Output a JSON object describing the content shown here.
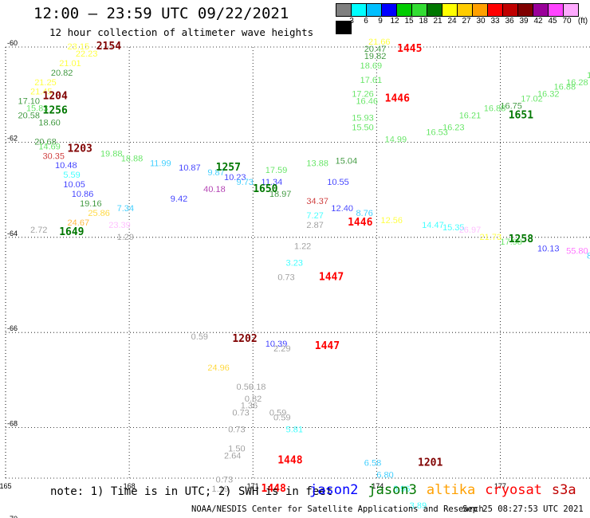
{
  "header": {
    "title": "12:00 – 23:59 UTC 09/22/2021",
    "subtitle": "12 hour collection of altimeter wave heights"
  },
  "legend": {
    "unit": "(ft)",
    "colors": [
      "#808080",
      "#00ffff",
      "#00bfff",
      "#0000ff",
      "#00cc00",
      "#33dd33",
      "#007700",
      "#ffff00",
      "#ffcc00",
      "#ffa000",
      "#ff0000",
      "#c00000",
      "#800000",
      "#990099",
      "#ff44ff",
      "#ffaaff",
      "#000000"
    ],
    "labels": [
      "3",
      "6",
      "9",
      "12",
      "15",
      "18",
      "21",
      "24",
      "27",
      "30",
      "33",
      "36",
      "39",
      "42",
      "45",
      "70"
    ]
  },
  "axes": {
    "lat_labels": [
      "-60",
      "-62",
      "-64",
      "-66",
      "-68",
      "-70"
    ],
    "lon_labels": [
      "165",
      "168",
      "171",
      "-174",
      "177"
    ]
  },
  "wave_heights": [
    {
      "text": "23.15",
      "lon": 166.5,
      "lat": -60.05,
      "color": "#ffff00"
    },
    {
      "text": "22.23",
      "lon": 166.7,
      "lat": -60.2,
      "color": "#ffff00"
    },
    {
      "text": "21.01",
      "lon": 166.3,
      "lat": -60.4,
      "color": "#ffff00"
    },
    {
      "text": "20.82",
      "lon": 166.1,
      "lat": -60.6,
      "color": "#007700"
    },
    {
      "text": "21.25",
      "lon": 165.7,
      "lat": -60.8,
      "color": "#ffff00"
    },
    {
      "text": "21.45",
      "lon": 165.6,
      "lat": -61.0,
      "color": "#ffff00"
    },
    {
      "text": "17.10",
      "lon": 165.3,
      "lat": -61.2,
      "color": "#007700"
    },
    {
      "text": "15.83",
      "lon": 165.5,
      "lat": -61.35,
      "color": "#33dd33"
    },
    {
      "text": "20.58",
      "lon": 165.3,
      "lat": -61.5,
      "color": "#007700"
    },
    {
      "text": "18.60",
      "lon": 165.8,
      "lat": -61.65,
      "color": "#007700"
    },
    {
      "text": "20.68",
      "lon": 165.7,
      "lat": -62.05,
      "color": "#007700"
    },
    {
      "text": "14.69",
      "lon": 165.8,
      "lat": -62.15,
      "color": "#33dd33"
    },
    {
      "text": "30.35",
      "lon": 165.9,
      "lat": -62.35,
      "color": "#c00000"
    },
    {
      "text": "10.48",
      "lon": 166.2,
      "lat": -62.55,
      "color": "#0000ff"
    },
    {
      "text": "5.59",
      "lon": 166.4,
      "lat": -62.75,
      "color": "#00ffff"
    },
    {
      "text": "10.05",
      "lon": 166.4,
      "lat": -62.95,
      "color": "#0000ff"
    },
    {
      "text": "10.86",
      "lon": 166.6,
      "lat": -63.15,
      "color": "#0000ff"
    },
    {
      "text": "19.16",
      "lon": 166.8,
      "lat": -63.35,
      "color": "#007700"
    },
    {
      "text": "7.34",
      "lon": 167.7,
      "lat": -63.45,
      "color": "#00bfff"
    },
    {
      "text": "25.86",
      "lon": 167.0,
      "lat": -63.55,
      "color": "#ffcc00"
    },
    {
      "text": "24.67",
      "lon": 166.5,
      "lat": -63.75,
      "color": "#ffa000"
    },
    {
      "text": "23.39",
      "lon": 167.5,
      "lat": -63.8,
      "color": "#ffaaff"
    },
    {
      "text": "2.72",
      "lon": 165.6,
      "lat": -63.9,
      "color": "#808080"
    },
    {
      "text": "1.29",
      "lon": 167.7,
      "lat": -64.05,
      "color": "#808080"
    },
    {
      "text": "19.88",
      "lon": 167.3,
      "lat": -62.3,
      "color": "#33dd33"
    },
    {
      "text": "18.88",
      "lon": 167.8,
      "lat": -62.4,
      "color": "#33dd33"
    },
    {
      "text": "11.99",
      "lon": 168.5,
      "lat": -62.5,
      "color": "#00bfff"
    },
    {
      "text": "10.87",
      "lon": 169.2,
      "lat": -62.6,
      "color": "#0000ff"
    },
    {
      "text": "9.87",
      "lon": 169.9,
      "lat": -62.7,
      "color": "#00bfff"
    },
    {
      "text": "10.23",
      "lon": 170.3,
      "lat": -62.8,
      "color": "#0000ff"
    },
    {
      "text": "9.73",
      "lon": 170.6,
      "lat": -62.9,
      "color": "#00bfff"
    },
    {
      "text": "9.42",
      "lon": 169.0,
      "lat": -63.25,
      "color": "#0000ff"
    },
    {
      "text": "40.18",
      "lon": 169.8,
      "lat": -63.05,
      "color": "#990099"
    },
    {
      "text": "11.34",
      "lon": 171.2,
      "lat": -62.9,
      "color": "#0000ff"
    },
    {
      "text": "17.59",
      "lon": 171.3,
      "lat": -62.65,
      "color": "#33dd33"
    },
    {
      "text": "18.97",
      "lon": 171.4,
      "lat": -63.15,
      "color": "#007700"
    },
    {
      "text": "13.88",
      "lon": 172.3,
      "lat": -62.5,
      "color": "#33dd33"
    },
    {
      "text": "15.04",
      "lon": 173.0,
      "lat": -62.45,
      "color": "#007700"
    },
    {
      "text": "10.55",
      "lon": 172.8,
      "lat": -62.9,
      "color": "#0000ff"
    },
    {
      "text": "34.37",
      "lon": 172.3,
      "lat": -63.3,
      "color": "#c00000"
    },
    {
      "text": "7.27",
      "lon": 172.3,
      "lat": -63.6,
      "color": "#00ffff"
    },
    {
      "text": "2.87",
      "lon": 172.3,
      "lat": -63.8,
      "color": "#808080"
    },
    {
      "text": "12.40",
      "lon": 172.9,
      "lat": -63.45,
      "color": "#0000ff"
    },
    {
      "text": "8.76",
      "lon": 173.5,
      "lat": -63.55,
      "color": "#00bfff"
    },
    {
      "text": "12.56",
      "lon": 174.1,
      "lat": -63.7,
      "color": "#ffff00"
    },
    {
      "text": "1.22",
      "lon": 172.0,
      "lat": -64.25,
      "color": "#808080"
    },
    {
      "text": "3.23",
      "lon": 171.8,
      "lat": -64.6,
      "color": "#00ffff"
    },
    {
      "text": "0.73",
      "lon": 171.6,
      "lat": -64.9,
      "color": "#808080"
    },
    {
      "text": "21.66",
      "lon": 173.8,
      "lat": -59.95,
      "color": "#ffff00"
    },
    {
      "text": "20.47",
      "lon": 173.7,
      "lat": -60.1,
      "color": "#007700"
    },
    {
      "text": "19.82",
      "lon": 173.7,
      "lat": -60.25,
      "color": "#007700"
    },
    {
      "text": "18.69",
      "lon": 173.6,
      "lat": -60.45,
      "color": "#33dd33"
    },
    {
      "text": "17.61",
      "lon": 173.6,
      "lat": -60.75,
      "color": "#33dd33"
    },
    {
      "text": "17.26",
      "lon": 173.4,
      "lat": -61.05,
      "color": "#33dd33"
    },
    {
      "text": "16.46",
      "lon": 173.5,
      "lat": -61.2,
      "color": "#33dd33"
    },
    {
      "text": "15.93",
      "lon": 173.4,
      "lat": -61.55,
      "color": "#33dd33"
    },
    {
      "text": "15.50",
      "lon": 173.4,
      "lat": -61.75,
      "color": "#33dd33"
    },
    {
      "text": "14.99",
      "lon": 174.2,
      "lat": -62.0,
      "color": "#33dd33"
    },
    {
      "text": "16.53",
      "lon": 175.2,
      "lat": -61.85,
      "color": "#33dd33"
    },
    {
      "text": "16.23",
      "lon": 175.6,
      "lat": -61.75,
      "color": "#33dd33"
    },
    {
      "text": "16.21",
      "lon": 176.0,
      "lat": -61.5,
      "color": "#33dd33"
    },
    {
      "text": "16.88",
      "lon": 176.6,
      "lat": -61.35,
      "color": "#33dd33"
    },
    {
      "text": "16.75",
      "lon": 177.0,
      "lat": -61.3,
      "color": "#007700"
    },
    {
      "text": "17.02",
      "lon": 177.5,
      "lat": -61.15,
      "color": "#33dd33"
    },
    {
      "text": "16.32",
      "lon": 177.9,
      "lat": -61.05,
      "color": "#33dd33"
    },
    {
      "text": "16.88",
      "lon": 178.3,
      "lat": -60.9,
      "color": "#33dd33"
    },
    {
      "text": "16.28",
      "lon": 178.6,
      "lat": -60.8,
      "color": "#33dd33"
    },
    {
      "text": "16.21",
      "lon": 179.1,
      "lat": -60.65,
      "color": "#33dd33"
    },
    {
      "text": "14.34",
      "lon": 179.6,
      "lat": -60.5,
      "color": "#33dd33"
    },
    {
      "text": "14.72",
      "lon": 180.0,
      "lat": -60.4,
      "color": "#33dd33"
    },
    {
      "text": "15.72",
      "lon": 180.6,
      "lat": -60.35,
      "color": "#33dd33"
    },
    {
      "text": "15.72",
      "lon": 181.1,
      "lat": -60.2,
      "color": "#33dd33"
    },
    {
      "text": "14.47",
      "lon": 175.1,
      "lat": -63.8,
      "color": "#00ffff"
    },
    {
      "text": "15.35",
      "lon": 175.6,
      "lat": -63.85,
      "color": "#00ffff"
    },
    {
      "text": "26.97",
      "lon": 176.0,
      "lat": -63.9,
      "color": "#ffaaff"
    },
    {
      "text": "21.73",
      "lon": 176.5,
      "lat": -64.05,
      "color": "#ffff00"
    },
    {
      "text": "17.98",
      "lon": 177.0,
      "lat": -64.15,
      "color": "#33dd33"
    },
    {
      "text": "10.13",
      "lon": 177.9,
      "lat": -64.3,
      "color": "#0000ff"
    },
    {
      "text": "55.80",
      "lon": 178.6,
      "lat": -64.35,
      "color": "#ff44ff"
    },
    {
      "text": "8.76",
      "lon": 179.1,
      "lat": -64.45,
      "color": "#00bfff"
    },
    {
      "text": "8.04",
      "lon": 179.5,
      "lat": -64.5,
      "color": "#00bfff"
    },
    {
      "text": "11.26",
      "lon": 180.3,
      "lat": -64.55,
      "color": "#33dd33"
    },
    {
      "text": "11.31",
      "lon": 180.6,
      "lat": -64.6,
      "color": "#0000ff"
    },
    {
      "text": "0.59",
      "lon": 169.5,
      "lat": -66.15,
      "color": "#808080"
    },
    {
      "text": "10.39",
      "lon": 171.3,
      "lat": -66.3,
      "color": "#0000ff"
    },
    {
      "text": "2.29",
      "lon": 171.5,
      "lat": -66.4,
      "color": "#808080"
    },
    {
      "text": "24.96",
      "lon": 169.9,
      "lat": -66.8,
      "color": "#ffcc00"
    },
    {
      "text": "0.59",
      "lon": 170.6,
      "lat": -67.2,
      "color": "#808080"
    },
    {
      "text": "0.18",
      "lon": 170.9,
      "lat": -67.2,
      "color": "#808080"
    },
    {
      "text": "0.82",
      "lon": 170.8,
      "lat": -67.45,
      "color": "#808080"
    },
    {
      "text": "1.36",
      "lon": 170.7,
      "lat": -67.6,
      "color": "#808080"
    },
    {
      "text": "0.73",
      "lon": 170.5,
      "lat": -67.75,
      "color": "#808080"
    },
    {
      "text": "0.59",
      "lon": 171.4,
      "lat": -67.75,
      "color": "#808080"
    },
    {
      "text": "0.59",
      "lon": 171.5,
      "lat": -67.85,
      "color": "#808080"
    },
    {
      "text": "0.73",
      "lon": 170.4,
      "lat": -68.1,
      "color": "#808080"
    },
    {
      "text": "5.81",
      "lon": 171.8,
      "lat": -68.1,
      "color": "#00ffff"
    },
    {
      "text": "1.50",
      "lon": 170.4,
      "lat": -68.5,
      "color": "#808080"
    },
    {
      "text": "2.64",
      "lon": 170.3,
      "lat": -68.65,
      "color": "#808080"
    },
    {
      "text": "0.73",
      "lon": 170.1,
      "lat": -69.15,
      "color": "#808080"
    },
    {
      "text": "1.19",
      "lon": 170.0,
      "lat": -69.35,
      "color": "#808080"
    },
    {
      "text": "6.58",
      "lon": 173.7,
      "lat": -68.8,
      "color": "#00bfff"
    },
    {
      "text": "6.80",
      "lon": 174.0,
      "lat": -69.05,
      "color": "#00bfff"
    },
    {
      "text": "3.96",
      "lon": 174.4,
      "lat": -69.35,
      "color": "#00ffff"
    },
    {
      "text": "3.89",
      "lon": 174.8,
      "lat": -69.7,
      "color": "#00ffff"
    }
  ],
  "pass_times": [
    {
      "text": "2154",
      "lon": 167.2,
      "lat": -60.05,
      "color": "#800000"
    },
    {
      "text": "1204",
      "lon": 165.9,
      "lat": -61.1,
      "color": "#800000"
    },
    {
      "text": "1256",
      "lon": 165.9,
      "lat": -61.4,
      "color": "#007700"
    },
    {
      "text": "1203",
      "lon": 166.5,
      "lat": -62.2,
      "color": "#800000"
    },
    {
      "text": "1649",
      "lon": 166.3,
      "lat": -63.95,
      "color": "#007700"
    },
    {
      "text": "1257",
      "lon": 170.1,
      "lat": -62.6,
      "color": "#007700"
    },
    {
      "text": "1650",
      "lon": 171.0,
      "lat": -63.05,
      "color": "#007700"
    },
    {
      "text": "1445",
      "lon": 174.5,
      "lat": -60.1,
      "color": "#ff0000"
    },
    {
      "text": "1446",
      "lon": 174.2,
      "lat": -61.15,
      "color": "#ff0000"
    },
    {
      "text": "1651",
      "lon": 177.2,
      "lat": -61.5,
      "color": "#007700"
    },
    {
      "text": "1446",
      "lon": 173.3,
      "lat": -63.75,
      "color": "#ff0000"
    },
    {
      "text": "1447",
      "lon": 172.6,
      "lat": -64.9,
      "color": "#ff0000"
    },
    {
      "text": "1258",
      "lon": 177.2,
      "lat": -64.1,
      "color": "#007700"
    },
    {
      "text": "1202",
      "lon": 170.5,
      "lat": -66.2,
      "color": "#800000"
    },
    {
      "text": "1447",
      "lon": 172.5,
      "lat": -66.35,
      "color": "#ff0000"
    },
    {
      "text": "1448",
      "lon": 171.6,
      "lat": -68.75,
      "color": "#ff0000"
    },
    {
      "text": "1448",
      "lon": 171.2,
      "lat": -69.35,
      "color": "#ff0000"
    },
    {
      "text": "1201",
      "lon": 175.0,
      "lat": -68.8,
      "color": "#800000"
    }
  ],
  "footer": {
    "note": "note: 1) Time is in UTC; 2) SWH is in feet",
    "satellites": [
      {
        "name": "jason2",
        "color": "#0000ff"
      },
      {
        "name": "jason3",
        "color": "#007700"
      },
      {
        "name": "altika",
        "color": "#ffa000"
      },
      {
        "name": "cryosat",
        "color": "#ff0000"
      },
      {
        "name": "s3a",
        "color": "#c00000"
      }
    ],
    "credit": "NOAA/NESDIS Center for Satellite Applications and Research",
    "generated": "Sep 25 08:27:53 UTC 2021"
  }
}
